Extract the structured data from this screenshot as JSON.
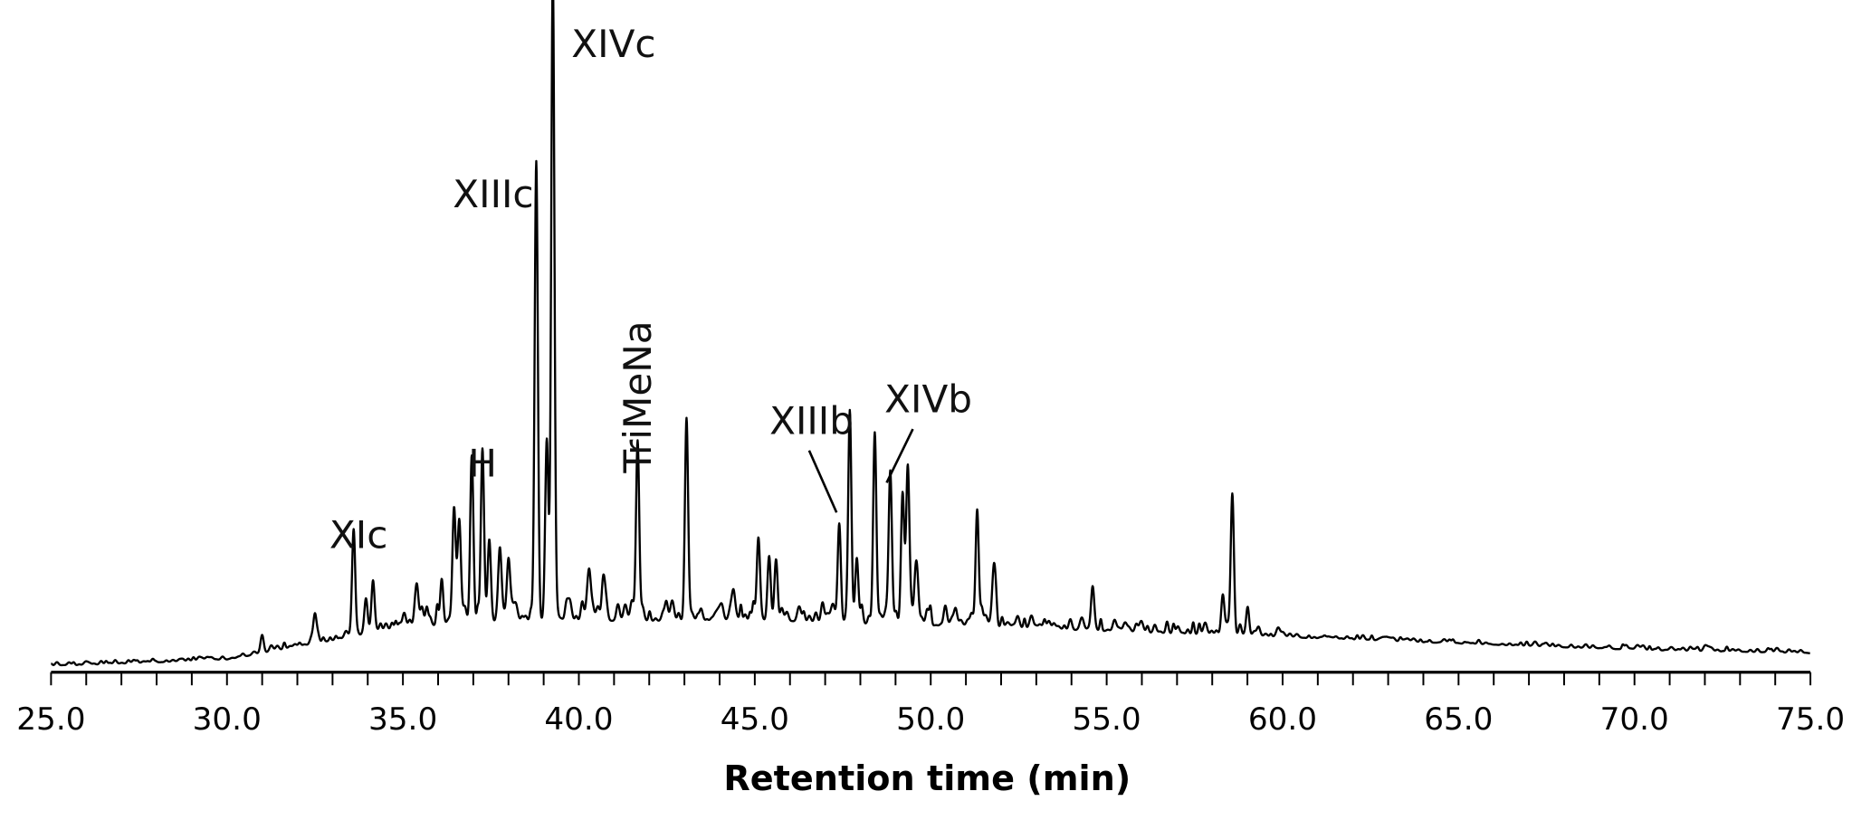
{
  "chart_data": {
    "type": "line",
    "title": "",
    "xlabel": "Retention time (min)",
    "ylabel": "",
    "xlim": [
      25.0,
      75.0
    ],
    "ylim": [
      0,
      100
    ],
    "x_ticks": [
      "25.0",
      "30.0",
      "35.0",
      "40.0",
      "45.0",
      "50.0",
      "55.0",
      "60.0",
      "65.0",
      "70.0",
      "75.0"
    ],
    "minor_tick_step": 1.0,
    "grid": false,
    "baseline": [
      [
        25,
        0
      ],
      [
        30,
        1
      ],
      [
        33,
        4
      ],
      [
        35,
        6
      ],
      [
        38,
        7
      ],
      [
        45,
        7
      ],
      [
        52,
        6
      ],
      [
        57,
        5
      ],
      [
        60,
        4.5
      ],
      [
        65,
        3.5
      ],
      [
        70,
        2.5
      ],
      [
        75,
        2
      ]
    ],
    "peaks": [
      {
        "t": 31.0,
        "h": 2.5
      },
      {
        "t": 32.5,
        "h": 4.5
      },
      {
        "t": 33.6,
        "h": 16.5
      },
      {
        "t": 33.95,
        "h": 5
      },
      {
        "t": 34.15,
        "h": 8
      },
      {
        "t": 35.4,
        "h": 6
      },
      {
        "t": 36.1,
        "h": 6
      },
      {
        "t": 36.45,
        "h": 15.5
      },
      {
        "t": 36.6,
        "h": 14
      },
      {
        "t": 36.96,
        "h": 24.8
      },
      {
        "t": 37.26,
        "h": 26.1
      },
      {
        "t": 37.45,
        "h": 10
      },
      {
        "t": 37.75,
        "h": 9
      },
      {
        "t": 38.0,
        "h": 9
      },
      {
        "t": 38.79,
        "h": 69.1
      },
      {
        "t": 39.09,
        "h": 26.7
      },
      {
        "t": 39.26,
        "h": 100
      },
      {
        "t": 40.3,
        "h": 6
      },
      {
        "t": 40.7,
        "h": 6
      },
      {
        "t": 41.67,
        "h": 27.4
      },
      {
        "t": 43.06,
        "h": 31.2
      },
      {
        "t": 44.4,
        "h": 4
      },
      {
        "t": 45.1,
        "h": 10
      },
      {
        "t": 45.4,
        "h": 8
      },
      {
        "t": 45.6,
        "h": 9
      },
      {
        "t": 47.4,
        "h": 15
      },
      {
        "t": 47.7,
        "h": 30.1
      },
      {
        "t": 47.9,
        "h": 10
      },
      {
        "t": 48.41,
        "h": 29.0
      },
      {
        "t": 48.85,
        "h": 23
      },
      {
        "t": 49.2,
        "h": 20
      },
      {
        "t": 49.35,
        "h": 22.5
      },
      {
        "t": 49.6,
        "h": 8
      },
      {
        "t": 51.32,
        "h": 18
      },
      {
        "t": 51.8,
        "h": 8
      },
      {
        "t": 54.6,
        "h": 6
      },
      {
        "t": 58.3,
        "h": 6
      },
      {
        "t": 58.57,
        "h": 20.4
      },
      {
        "t": 59.0,
        "h": 3
      }
    ],
    "annotations": [
      {
        "label": "XIc",
        "t": 33.6
      },
      {
        "label": "H",
        "t": 37.1
      },
      {
        "label": "XIIIc",
        "t": 38.79
      },
      {
        "label": "XIVc",
        "t": 39.26
      },
      {
        "label": "TriMeNa",
        "t": 41.67
      },
      {
        "label": "XIIIb",
        "t": 47.7
      },
      {
        "label": "XIVb",
        "t": 48.41
      }
    ]
  }
}
